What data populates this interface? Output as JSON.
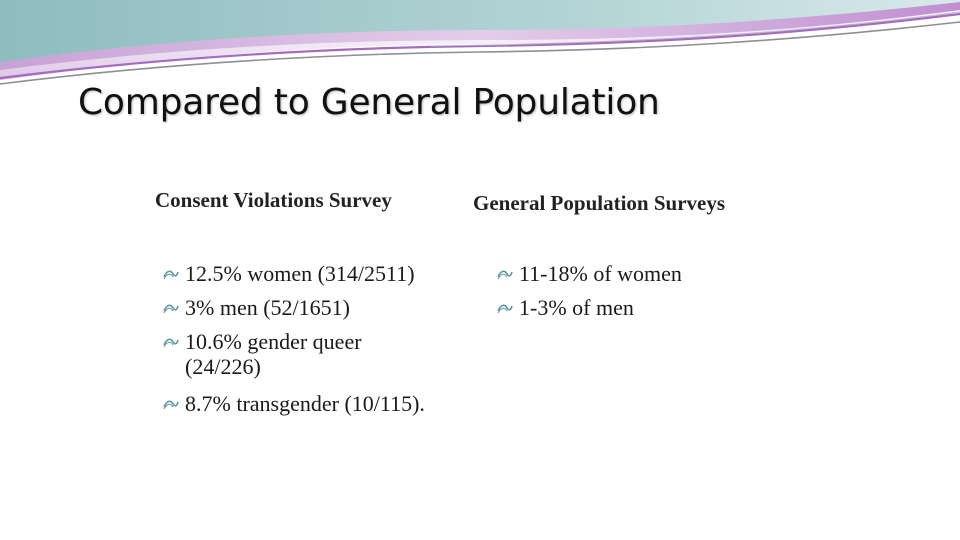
{
  "slide": {
    "title": "Compared to General Population",
    "accent_colors": {
      "teal": "#9fc6c9",
      "lavender": "#c9a6d8",
      "purple": "#a66bbf",
      "gray": "#8b8f96",
      "bullet": "#5b9aa0"
    }
  },
  "left_column": {
    "heading": "Consent Violations Survey",
    "items": [
      {
        "text": "12.5% women (314/2511)"
      },
      {
        "text": "3% men (52/1651)"
      },
      {
        "text": "10.6% gender queer",
        "continuation": "(24/226)"
      },
      {
        "text": "8.7% transgender (10/115)."
      }
    ]
  },
  "right_column": {
    "heading": "General Population Surveys",
    "items": [
      {
        "text": "11-18% of women"
      },
      {
        "text": "1-3% of men"
      }
    ]
  },
  "bullet_icon": "wave-bullet-icon"
}
